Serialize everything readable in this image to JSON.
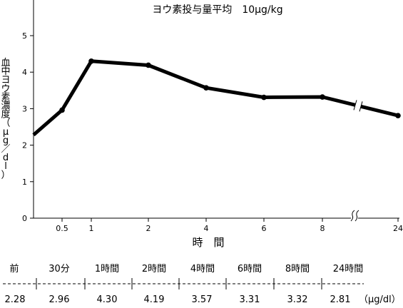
{
  "chart_data": {
    "type": "line",
    "title": "ヨウ素投与量平均　10μg/kg",
    "ylabel": "血中ヨウ素濃度（μg/dl）",
    "ylabel_chars": [
      "血",
      "中",
      "ヨ",
      "ウ",
      "素",
      "濃",
      "度",
      "（",
      "μ",
      "g",
      "／",
      "d",
      "l",
      "）"
    ],
    "xlabel": "時　間",
    "x": [
      0,
      0.5,
      1,
      2,
      4,
      6,
      8,
      24
    ],
    "y": [
      2.28,
      2.96,
      4.3,
      4.19,
      3.57,
      3.31,
      3.32,
      2.81
    ],
    "xticks": [
      {
        "value": 0.5,
        "label": "0.5"
      },
      {
        "value": 1,
        "label": "1"
      },
      {
        "value": 2,
        "label": "2"
      },
      {
        "value": 4,
        "label": "4"
      },
      {
        "value": 6,
        "label": "6"
      },
      {
        "value": 8,
        "label": "8"
      },
      {
        "value": 24,
        "label": "24"
      }
    ],
    "yticks": [
      "0",
      "1",
      "2",
      "3",
      "4",
      "5"
    ],
    "ylim": [
      0,
      5.8
    ],
    "axis_break": "between 8 and 24",
    "grid": false,
    "legend": "none"
  },
  "table": {
    "headers": [
      "前",
      "30分",
      "1時間",
      "2時間",
      "4時間",
      "6時間",
      "8時間",
      "24時間"
    ],
    "values": [
      "2.28",
      "2.96",
      "4.30",
      "4.19",
      "3.57",
      "3.31",
      "3.32",
      "2.81"
    ],
    "unit": "（μg/dl）"
  }
}
